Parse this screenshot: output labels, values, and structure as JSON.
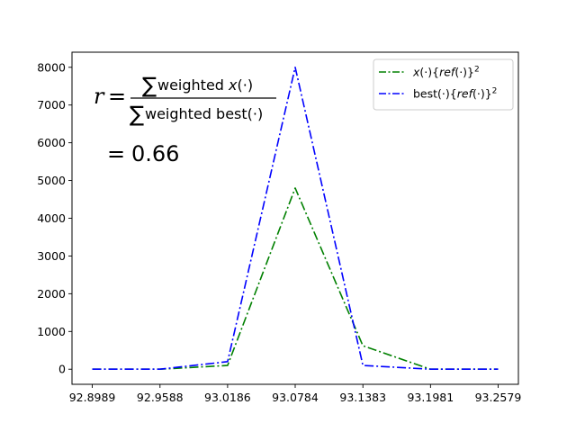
{
  "chart_data": {
    "type": "line",
    "x": [
      92.8989,
      92.9588,
      93.0186,
      93.0784,
      93.1383,
      93.1981,
      93.2579
    ],
    "x_tick_labels": [
      "92.8989",
      "92.9588",
      "93.0186",
      "93.0784",
      "93.1383",
      "93.1981",
      "93.2579"
    ],
    "ylim": [
      -400,
      8400
    ],
    "y_ticks": [
      0,
      1000,
      2000,
      3000,
      4000,
      5000,
      6000,
      7000,
      8000
    ],
    "y_tick_labels": [
      "0",
      "1000",
      "2000",
      "3000",
      "4000",
      "5000",
      "6000",
      "7000",
      "8000"
    ],
    "grid": false,
    "legend_position": "top-right",
    "series": [
      {
        "name": "x(·){ref(·)}²",
        "legend": {
          "main": "x",
          "paren": "(·){",
          "ref": "ref",
          "tail": "(·)}",
          "sup": "2"
        },
        "color": "#008000",
        "linestyle": "dashdot",
        "values": [
          0,
          0,
          100,
          4800,
          620,
          0,
          0
        ]
      },
      {
        "name": "best(·){ref(·)}²",
        "legend": {
          "main": "best",
          "paren": "(·){",
          "ref": "ref",
          "tail": "(·)}",
          "sup": "2"
        },
        "color": "#0000ff",
        "linestyle": "dashdot",
        "values": [
          0,
          0,
          200,
          8000,
          100,
          0,
          0
        ]
      }
    ],
    "annotation": {
      "lhs": "r",
      "equals": "=",
      "sum": "∑",
      "numerator_word": "weighted ",
      "numerator_var": "x",
      "numerator_arg": "(·)",
      "denominator_word": "weighted best",
      "denominator_arg": "(·)",
      "result_equals": "=",
      "result_value": "0.66"
    }
  }
}
